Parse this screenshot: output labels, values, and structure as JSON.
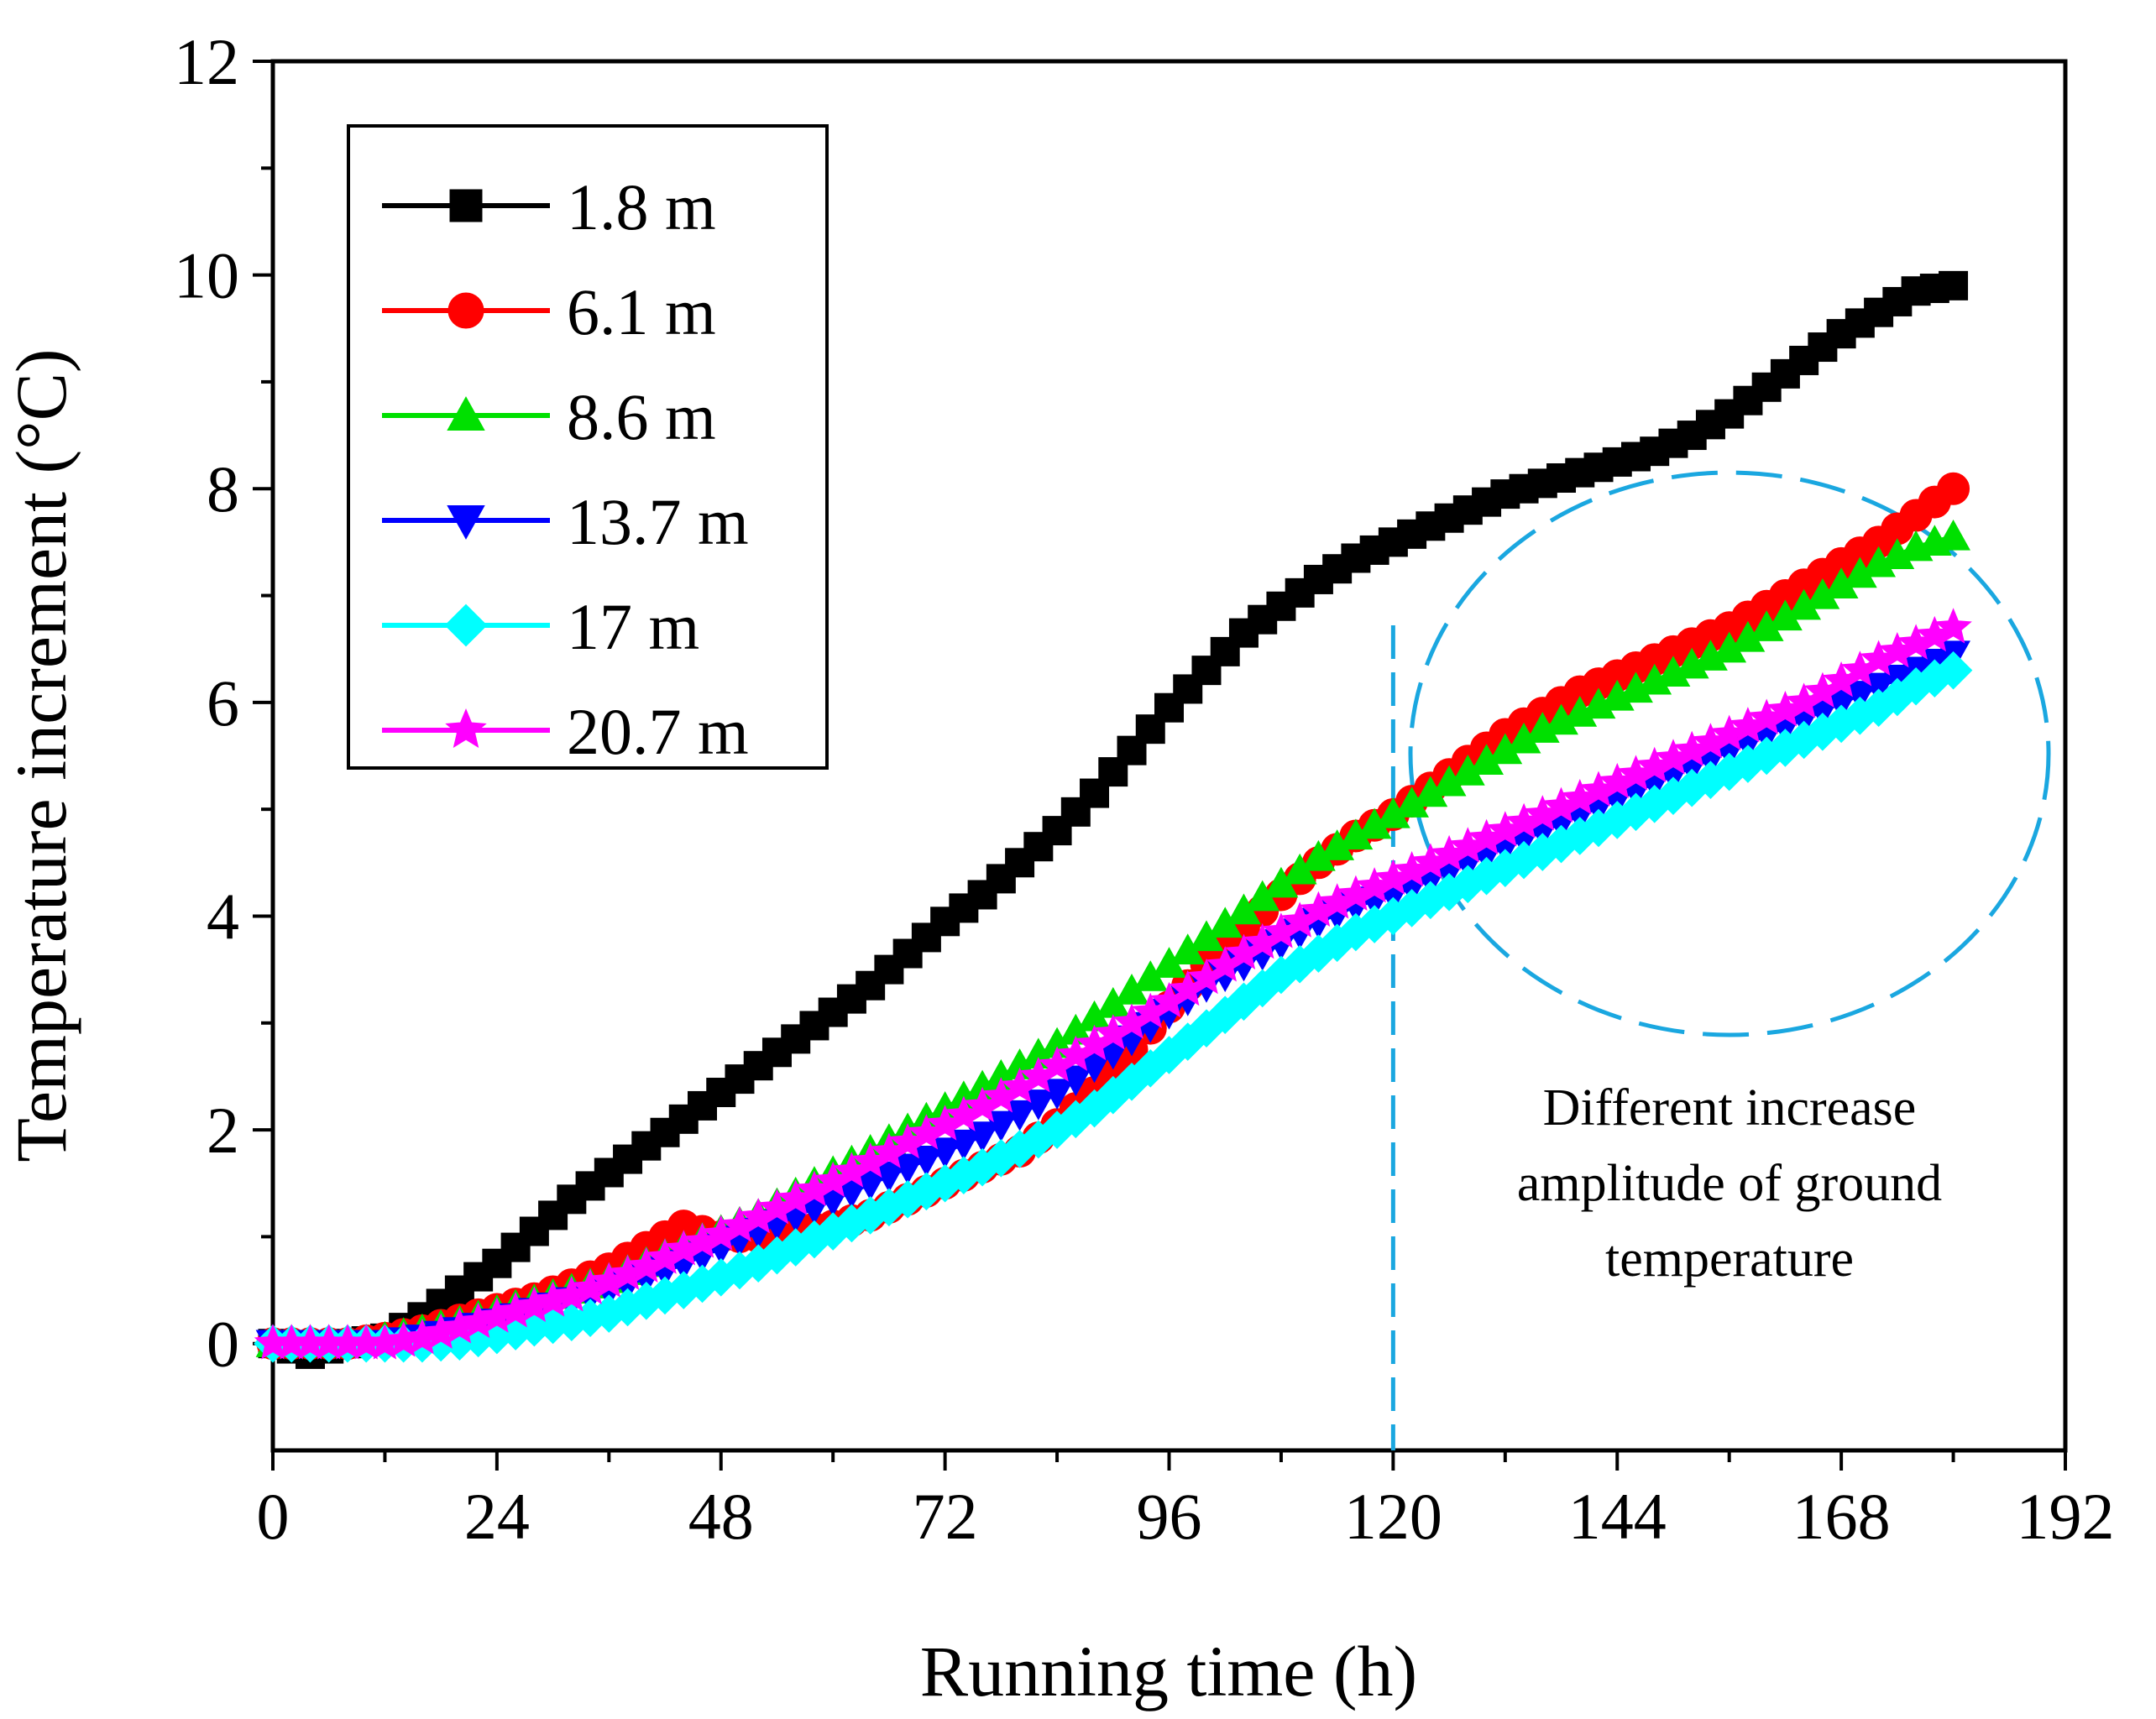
{
  "chart_data": {
    "type": "line",
    "xlabel": "Running time (h)",
    "ylabel": "Temperature increment (°C)",
    "xlim": [
      0,
      192
    ],
    "ylim": [
      -1,
      12
    ],
    "xticks": [
      0,
      24,
      48,
      72,
      96,
      120,
      144,
      168,
      192
    ],
    "yticks": [
      0,
      2,
      4,
      6,
      8,
      10,
      12
    ],
    "legend_position": "top-left",
    "series": [
      {
        "name": "1.8 m",
        "color": "#000000",
        "marker": "square",
        "points": [
          [
            0,
            0
          ],
          [
            4,
            -0.1
          ],
          [
            8,
            0
          ],
          [
            12,
            0.05
          ],
          [
            16,
            0.25
          ],
          [
            20,
            0.5
          ],
          [
            24,
            0.75
          ],
          [
            28,
            1.05
          ],
          [
            32,
            1.35
          ],
          [
            36,
            1.6
          ],
          [
            40,
            1.85
          ],
          [
            44,
            2.1
          ],
          [
            48,
            2.35
          ],
          [
            52,
            2.6
          ],
          [
            56,
            2.85
          ],
          [
            60,
            3.1
          ],
          [
            64,
            3.35
          ],
          [
            68,
            3.65
          ],
          [
            72,
            3.95
          ],
          [
            76,
            4.2
          ],
          [
            80,
            4.5
          ],
          [
            84,
            4.8
          ],
          [
            88,
            5.15
          ],
          [
            92,
            5.55
          ],
          [
            96,
            5.95
          ],
          [
            100,
            6.3
          ],
          [
            104,
            6.65
          ],
          [
            108,
            6.9
          ],
          [
            112,
            7.15
          ],
          [
            116,
            7.35
          ],
          [
            120,
            7.5
          ],
          [
            124,
            7.65
          ],
          [
            128,
            7.8
          ],
          [
            132,
            7.95
          ],
          [
            136,
            8.05
          ],
          [
            140,
            8.15
          ],
          [
            144,
            8.25
          ],
          [
            148,
            8.35
          ],
          [
            152,
            8.5
          ],
          [
            156,
            8.7
          ],
          [
            160,
            8.95
          ],
          [
            164,
            9.2
          ],
          [
            168,
            9.45
          ],
          [
            172,
            9.65
          ],
          [
            176,
            9.85
          ],
          [
            180,
            9.9
          ]
        ]
      },
      {
        "name": "6.1 m",
        "color": "#ff0000",
        "marker": "circle",
        "points": [
          [
            0,
            0
          ],
          [
            4,
            0
          ],
          [
            8,
            0
          ],
          [
            12,
            0.05
          ],
          [
            16,
            0.12
          ],
          [
            20,
            0.22
          ],
          [
            24,
            0.32
          ],
          [
            28,
            0.42
          ],
          [
            32,
            0.55
          ],
          [
            36,
            0.7
          ],
          [
            40,
            0.9
          ],
          [
            44,
            1.1
          ],
          [
            48,
            1.0
          ],
          [
            52,
            1.0
          ],
          [
            56,
            1.05
          ],
          [
            60,
            1.1
          ],
          [
            64,
            1.2
          ],
          [
            68,
            1.35
          ],
          [
            72,
            1.5
          ],
          [
            76,
            1.65
          ],
          [
            80,
            1.8
          ],
          [
            84,
            2.05
          ],
          [
            88,
            2.35
          ],
          [
            92,
            2.75
          ],
          [
            96,
            3.15
          ],
          [
            100,
            3.55
          ],
          [
            104,
            3.9
          ],
          [
            108,
            4.2
          ],
          [
            112,
            4.5
          ],
          [
            116,
            4.75
          ],
          [
            120,
            4.95
          ],
          [
            124,
            5.2
          ],
          [
            128,
            5.45
          ],
          [
            132,
            5.7
          ],
          [
            136,
            5.9
          ],
          [
            140,
            6.1
          ],
          [
            144,
            6.25
          ],
          [
            148,
            6.4
          ],
          [
            152,
            6.55
          ],
          [
            156,
            6.7
          ],
          [
            160,
            6.9
          ],
          [
            164,
            7.1
          ],
          [
            168,
            7.3
          ],
          [
            172,
            7.5
          ],
          [
            176,
            7.75
          ],
          [
            180,
            8.0
          ]
        ]
      },
      {
        "name": "8.6 m",
        "color": "#00e000",
        "marker": "triangle-up",
        "points": [
          [
            0,
            0
          ],
          [
            4,
            0
          ],
          [
            8,
            0
          ],
          [
            12,
            0.05
          ],
          [
            16,
            0.12
          ],
          [
            20,
            0.2
          ],
          [
            24,
            0.3
          ],
          [
            28,
            0.4
          ],
          [
            32,
            0.5
          ],
          [
            36,
            0.6
          ],
          [
            40,
            0.75
          ],
          [
            44,
            0.9
          ],
          [
            48,
            1.05
          ],
          [
            52,
            1.2
          ],
          [
            56,
            1.4
          ],
          [
            60,
            1.6
          ],
          [
            64,
            1.8
          ],
          [
            68,
            2.0
          ],
          [
            72,
            2.2
          ],
          [
            76,
            2.4
          ],
          [
            80,
            2.6
          ],
          [
            84,
            2.8
          ],
          [
            88,
            3.05
          ],
          [
            92,
            3.3
          ],
          [
            96,
            3.55
          ],
          [
            100,
            3.8
          ],
          [
            104,
            4.05
          ],
          [
            108,
            4.3
          ],
          [
            112,
            4.55
          ],
          [
            116,
            4.75
          ],
          [
            120,
            4.95
          ],
          [
            124,
            5.15
          ],
          [
            128,
            5.35
          ],
          [
            132,
            5.55
          ],
          [
            136,
            5.75
          ],
          [
            140,
            5.9
          ],
          [
            144,
            6.05
          ],
          [
            148,
            6.2
          ],
          [
            152,
            6.35
          ],
          [
            156,
            6.5
          ],
          [
            160,
            6.7
          ],
          [
            164,
            6.9
          ],
          [
            168,
            7.1
          ],
          [
            172,
            7.3
          ],
          [
            176,
            7.45
          ],
          [
            180,
            7.55
          ]
        ]
      },
      {
        "name": "13.7 m",
        "color": "#0000ff",
        "marker": "triangle-down",
        "points": [
          [
            0,
            0
          ],
          [
            4,
            0
          ],
          [
            8,
            0
          ],
          [
            12,
            0
          ],
          [
            16,
            0.05
          ],
          [
            20,
            0.12
          ],
          [
            24,
            0.2
          ],
          [
            28,
            0.3
          ],
          [
            32,
            0.4
          ],
          [
            36,
            0.5
          ],
          [
            40,
            0.62
          ],
          [
            44,
            0.75
          ],
          [
            48,
            0.9
          ],
          [
            52,
            1.05
          ],
          [
            56,
            1.2
          ],
          [
            60,
            1.35
          ],
          [
            64,
            1.5
          ],
          [
            68,
            1.65
          ],
          [
            72,
            1.8
          ],
          [
            76,
            1.95
          ],
          [
            80,
            2.15
          ],
          [
            84,
            2.35
          ],
          [
            88,
            2.6
          ],
          [
            92,
            2.85
          ],
          [
            96,
            3.1
          ],
          [
            100,
            3.35
          ],
          [
            104,
            3.55
          ],
          [
            108,
            3.75
          ],
          [
            112,
            3.95
          ],
          [
            116,
            4.1
          ],
          [
            120,
            4.2
          ],
          [
            124,
            4.35
          ],
          [
            128,
            4.5
          ],
          [
            132,
            4.65
          ],
          [
            136,
            4.8
          ],
          [
            140,
            4.95
          ],
          [
            144,
            5.1
          ],
          [
            148,
            5.25
          ],
          [
            152,
            5.4
          ],
          [
            156,
            5.55
          ],
          [
            160,
            5.7
          ],
          [
            164,
            5.85
          ],
          [
            168,
            6.0
          ],
          [
            172,
            6.15
          ],
          [
            176,
            6.3
          ],
          [
            180,
            6.45
          ]
        ]
      },
      {
        "name": "17 m",
        "color": "#00ffff",
        "marker": "diamond",
        "points": [
          [
            0,
            0
          ],
          [
            4,
            0
          ],
          [
            8,
            0
          ],
          [
            12,
            0
          ],
          [
            16,
            0
          ],
          [
            20,
            0.02
          ],
          [
            24,
            0.08
          ],
          [
            28,
            0.15
          ],
          [
            32,
            0.2
          ],
          [
            36,
            0.28
          ],
          [
            40,
            0.4
          ],
          [
            44,
            0.5
          ],
          [
            48,
            0.62
          ],
          [
            52,
            0.75
          ],
          [
            56,
            0.9
          ],
          [
            60,
            1.05
          ],
          [
            64,
            1.2
          ],
          [
            68,
            1.35
          ],
          [
            72,
            1.5
          ],
          [
            76,
            1.65
          ],
          [
            80,
            1.82
          ],
          [
            84,
            2.0
          ],
          [
            88,
            2.2
          ],
          [
            92,
            2.45
          ],
          [
            96,
            2.7
          ],
          [
            100,
            2.95
          ],
          [
            104,
            3.2
          ],
          [
            108,
            3.45
          ],
          [
            112,
            3.65
          ],
          [
            116,
            3.85
          ],
          [
            120,
            4.0
          ],
          [
            124,
            4.15
          ],
          [
            128,
            4.3
          ],
          [
            132,
            4.45
          ],
          [
            136,
            4.6
          ],
          [
            140,
            4.75
          ],
          [
            144,
            4.9
          ],
          [
            148,
            5.05
          ],
          [
            152,
            5.2
          ],
          [
            156,
            5.35
          ],
          [
            160,
            5.5
          ],
          [
            164,
            5.65
          ],
          [
            168,
            5.8
          ],
          [
            172,
            5.95
          ],
          [
            176,
            6.15
          ],
          [
            180,
            6.3
          ]
        ]
      },
      {
        "name": "20.7 m",
        "color": "#ff00ff",
        "marker": "star",
        "points": [
          [
            0,
            0
          ],
          [
            4,
            0
          ],
          [
            8,
            0
          ],
          [
            12,
            0
          ],
          [
            16,
            0.05
          ],
          [
            20,
            0.15
          ],
          [
            24,
            0.25
          ],
          [
            28,
            0.35
          ],
          [
            32,
            0.45
          ],
          [
            36,
            0.58
          ],
          [
            40,
            0.72
          ],
          [
            44,
            0.88
          ],
          [
            48,
            1.02
          ],
          [
            52,
            1.18
          ],
          [
            56,
            1.35
          ],
          [
            60,
            1.52
          ],
          [
            64,
            1.7
          ],
          [
            68,
            1.88
          ],
          [
            72,
            2.05
          ],
          [
            76,
            2.22
          ],
          [
            80,
            2.4
          ],
          [
            84,
            2.6
          ],
          [
            88,
            2.8
          ],
          [
            92,
            3.0
          ],
          [
            96,
            3.2
          ],
          [
            100,
            3.42
          ],
          [
            104,
            3.65
          ],
          [
            108,
            3.85
          ],
          [
            112,
            4.05
          ],
          [
            116,
            4.2
          ],
          [
            120,
            4.35
          ],
          [
            124,
            4.5
          ],
          [
            128,
            4.65
          ],
          [
            132,
            4.8
          ],
          [
            136,
            4.95
          ],
          [
            140,
            5.1
          ],
          [
            144,
            5.25
          ],
          [
            148,
            5.4
          ],
          [
            152,
            5.55
          ],
          [
            156,
            5.7
          ],
          [
            160,
            5.85
          ],
          [
            164,
            6.0
          ],
          [
            168,
            6.2
          ],
          [
            172,
            6.4
          ],
          [
            176,
            6.55
          ],
          [
            180,
            6.7
          ]
        ]
      }
    ],
    "annotations": {
      "text_lines": [
        "Different increase",
        "amplitude of ground",
        "temperature"
      ],
      "vline_x": 120,
      "vline_color": "#1aa7e0"
    }
  }
}
